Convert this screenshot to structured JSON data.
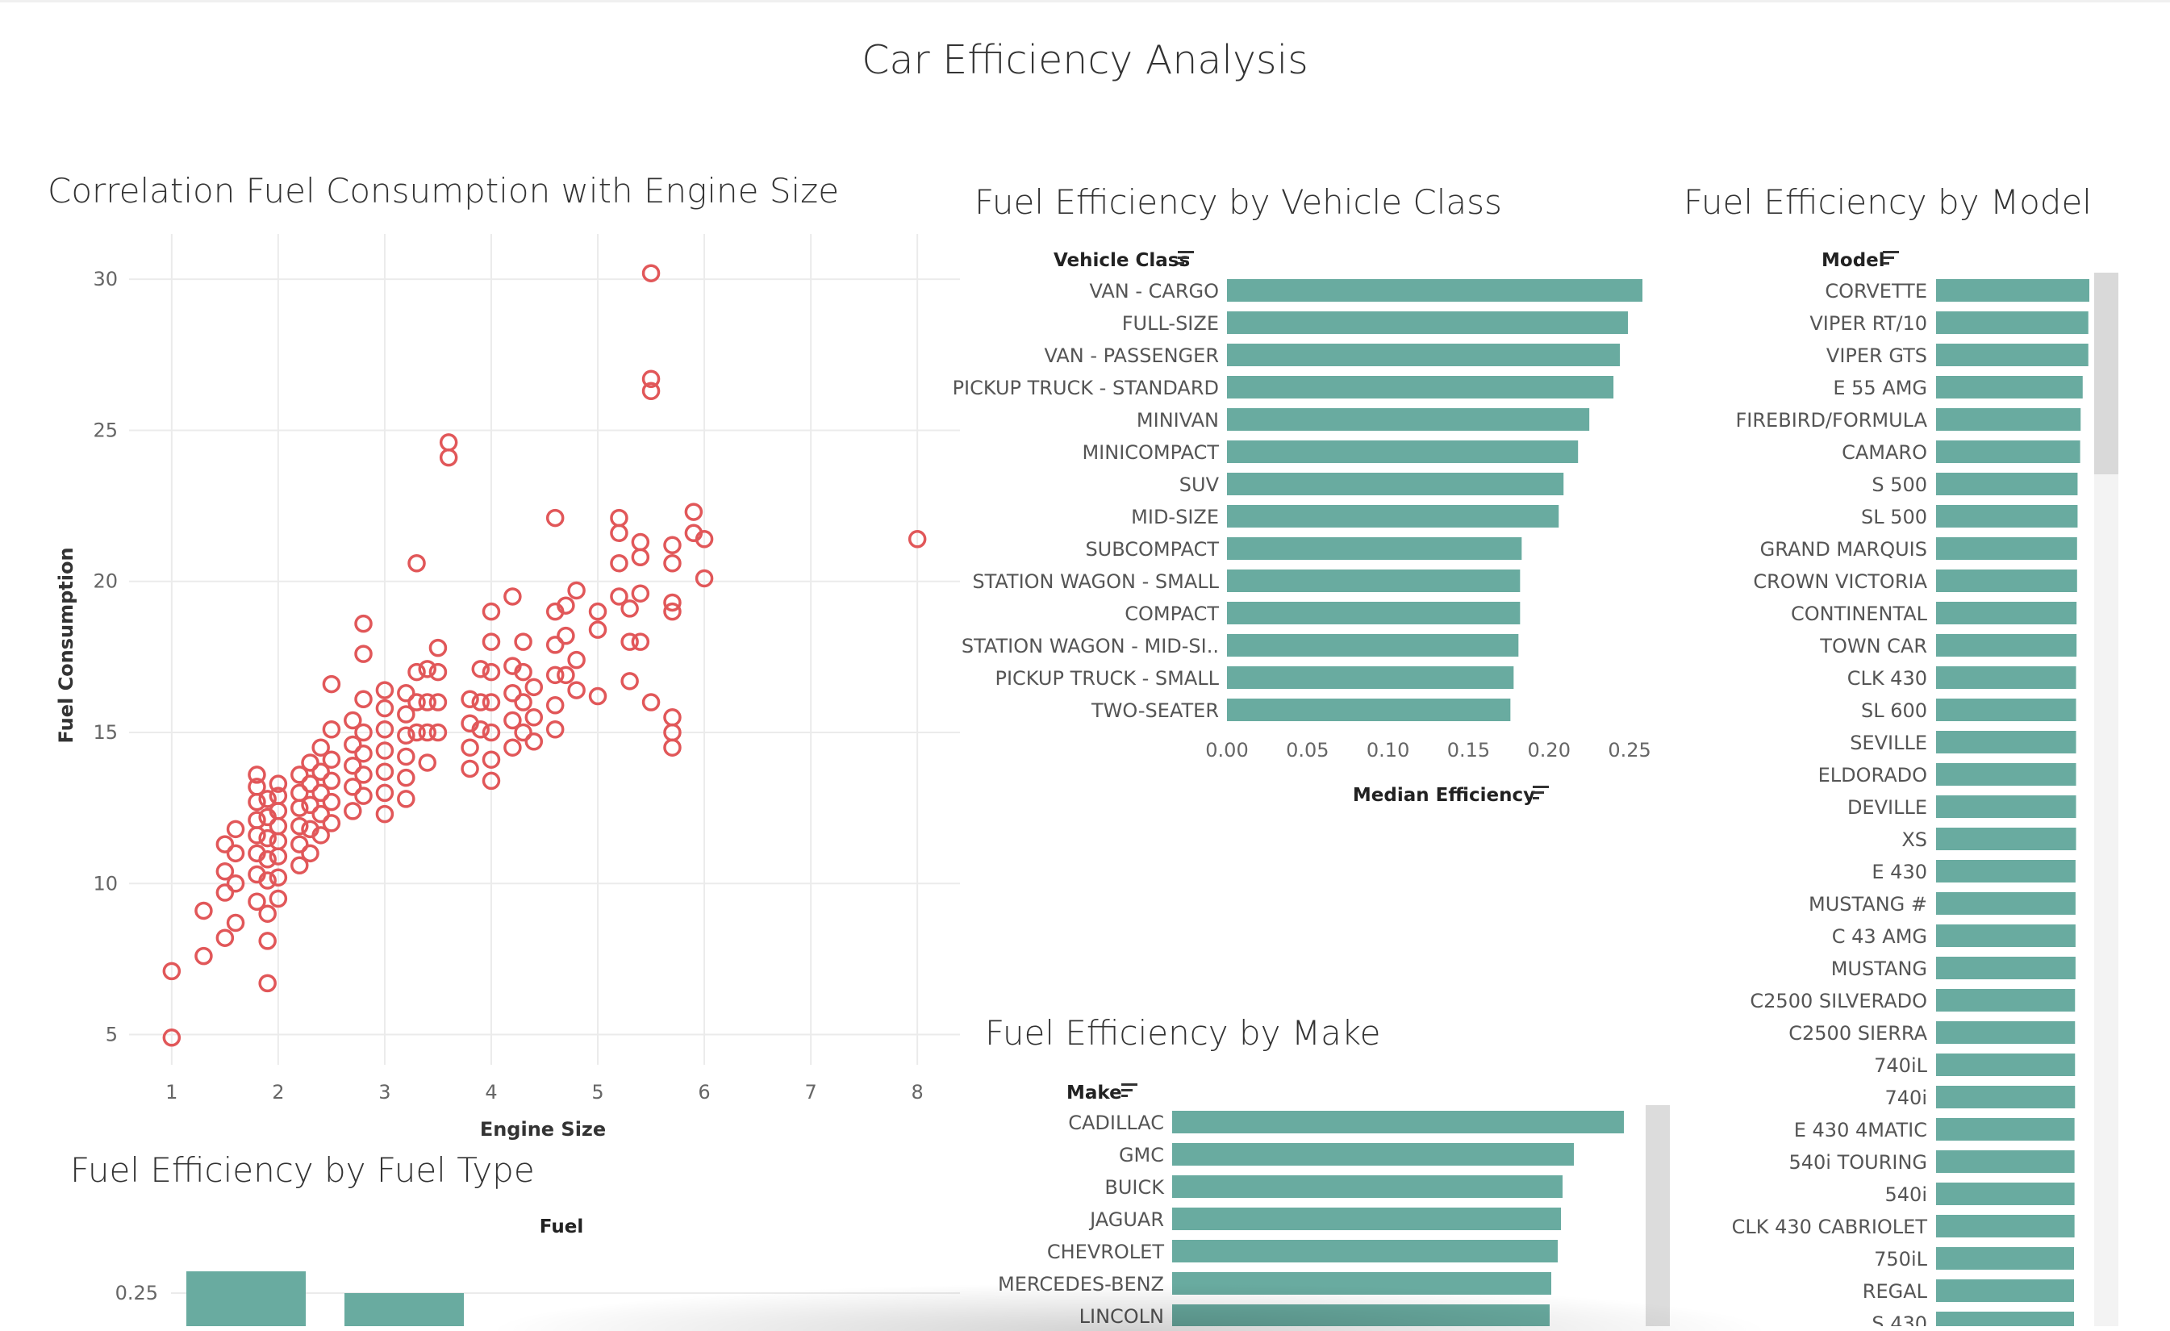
{
  "dashboard_title": "Car Efficiency Analysis",
  "colors": {
    "scatter": "#e15759",
    "bar": "#69aba0",
    "grid": "#ebebeb"
  },
  "scatter": {
    "title": "Correlation Fuel Consumption with Engine Size",
    "chart_data": {
      "type": "scatter",
      "xlabel": "Engine Size",
      "ylabel": "Fuel Consumption",
      "xlim": [
        0.6,
        8.4
      ],
      "ylim": [
        4,
        31.5
      ],
      "xticks": [
        "1",
        "2",
        "3",
        "4",
        "5",
        "6",
        "7",
        "8"
      ],
      "yticks": [
        "5",
        "10",
        "15",
        "20",
        "25",
        "30"
      ],
      "points": [
        [
          1.0,
          4.9
        ],
        [
          1.0,
          7.1
        ],
        [
          1.3,
          7.6
        ],
        [
          1.3,
          9.1
        ],
        [
          1.5,
          8.2
        ],
        [
          1.5,
          9.7
        ],
        [
          1.5,
          10.4
        ],
        [
          1.5,
          11.3
        ],
        [
          1.6,
          8.7
        ],
        [
          1.6,
          10.0
        ],
        [
          1.6,
          11.0
        ],
        [
          1.6,
          11.8
        ],
        [
          1.8,
          9.4
        ],
        [
          1.8,
          10.3
        ],
        [
          1.8,
          11.0
        ],
        [
          1.8,
          11.6
        ],
        [
          1.8,
          12.1
        ],
        [
          1.8,
          12.7
        ],
        [
          1.8,
          13.2
        ],
        [
          1.8,
          13.6
        ],
        [
          1.9,
          6.7
        ],
        [
          1.9,
          8.1
        ],
        [
          1.9,
          9.0
        ],
        [
          1.9,
          10.1
        ],
        [
          1.9,
          10.8
        ],
        [
          1.9,
          11.5
        ],
        [
          1.9,
          12.2
        ],
        [
          1.9,
          12.8
        ],
        [
          2.0,
          9.5
        ],
        [
          2.0,
          10.2
        ],
        [
          2.0,
          10.9
        ],
        [
          2.0,
          11.4
        ],
        [
          2.0,
          11.9
        ],
        [
          2.0,
          12.4
        ],
        [
          2.0,
          12.9
        ],
        [
          2.0,
          13.3
        ],
        [
          2.2,
          10.6
        ],
        [
          2.2,
          11.3
        ],
        [
          2.2,
          11.9
        ],
        [
          2.2,
          12.5
        ],
        [
          2.2,
          13.0
        ],
        [
          2.2,
          13.6
        ],
        [
          2.3,
          11.0
        ],
        [
          2.3,
          11.8
        ],
        [
          2.3,
          12.6
        ],
        [
          2.3,
          13.3
        ],
        [
          2.3,
          14.0
        ],
        [
          2.4,
          11.6
        ],
        [
          2.4,
          12.3
        ],
        [
          2.4,
          13.0
        ],
        [
          2.4,
          13.7
        ],
        [
          2.4,
          14.5
        ],
        [
          2.5,
          12.0
        ],
        [
          2.5,
          12.7
        ],
        [
          2.5,
          13.4
        ],
        [
          2.5,
          14.1
        ],
        [
          2.5,
          15.1
        ],
        [
          2.5,
          16.6
        ],
        [
          2.7,
          12.4
        ],
        [
          2.7,
          13.2
        ],
        [
          2.7,
          13.9
        ],
        [
          2.7,
          14.6
        ],
        [
          2.7,
          15.4
        ],
        [
          2.8,
          12.9
        ],
        [
          2.8,
          13.6
        ],
        [
          2.8,
          14.3
        ],
        [
          2.8,
          15.0
        ],
        [
          2.8,
          16.1
        ],
        [
          2.8,
          17.6
        ],
        [
          2.8,
          18.6
        ],
        [
          3.0,
          12.3
        ],
        [
          3.0,
          13.0
        ],
        [
          3.0,
          13.7
        ],
        [
          3.0,
          14.4
        ],
        [
          3.0,
          15.1
        ],
        [
          3.0,
          15.8
        ],
        [
          3.0,
          16.4
        ],
        [
          3.2,
          12.8
        ],
        [
          3.2,
          13.5
        ],
        [
          3.2,
          14.2
        ],
        [
          3.2,
          14.9
        ],
        [
          3.2,
          15.6
        ],
        [
          3.2,
          16.3
        ],
        [
          3.3,
          15.0
        ],
        [
          3.3,
          16.0
        ],
        [
          3.3,
          17.0
        ],
        [
          3.3,
          20.6
        ],
        [
          3.4,
          14.0
        ],
        [
          3.4,
          15.0
        ],
        [
          3.4,
          16.0
        ],
        [
          3.4,
          17.1
        ],
        [
          3.5,
          15.0
        ],
        [
          3.5,
          16.0
        ],
        [
          3.5,
          17.0
        ],
        [
          3.5,
          17.8
        ],
        [
          3.6,
          24.1
        ],
        [
          3.6,
          24.6
        ],
        [
          3.8,
          13.8
        ],
        [
          3.8,
          14.5
        ],
        [
          3.8,
          15.3
        ],
        [
          3.8,
          16.1
        ],
        [
          3.9,
          15.1
        ],
        [
          3.9,
          16.0
        ],
        [
          3.9,
          17.1
        ],
        [
          4.0,
          13.4
        ],
        [
          4.0,
          14.1
        ],
        [
          4.0,
          15.0
        ],
        [
          4.0,
          16.0
        ],
        [
          4.0,
          17.0
        ],
        [
          4.0,
          18.0
        ],
        [
          4.0,
          19.0
        ],
        [
          4.2,
          14.5
        ],
        [
          4.2,
          15.4
        ],
        [
          4.2,
          16.3
        ],
        [
          4.2,
          17.2
        ],
        [
          4.2,
          19.5
        ],
        [
          4.3,
          15.0
        ],
        [
          4.3,
          16.0
        ],
        [
          4.3,
          17.0
        ],
        [
          4.3,
          18.0
        ],
        [
          4.4,
          14.7
        ],
        [
          4.4,
          15.5
        ],
        [
          4.4,
          16.5
        ],
        [
          4.6,
          15.1
        ],
        [
          4.6,
          15.9
        ],
        [
          4.6,
          16.9
        ],
        [
          4.6,
          17.9
        ],
        [
          4.6,
          19.0
        ],
        [
          4.6,
          22.1
        ],
        [
          4.7,
          16.9
        ],
        [
          4.7,
          18.2
        ],
        [
          4.7,
          19.2
        ],
        [
          4.8,
          16.4
        ],
        [
          4.8,
          17.4
        ],
        [
          4.8,
          19.7
        ],
        [
          5.0,
          16.2
        ],
        [
          5.0,
          18.4
        ],
        [
          5.0,
          19.0
        ],
        [
          5.2,
          19.5
        ],
        [
          5.2,
          20.6
        ],
        [
          5.2,
          21.6
        ],
        [
          5.2,
          22.1
        ],
        [
          5.3,
          16.7
        ],
        [
          5.3,
          18.0
        ],
        [
          5.3,
          19.1
        ],
        [
          5.4,
          18.0
        ],
        [
          5.4,
          19.6
        ],
        [
          5.4,
          20.8
        ],
        [
          5.4,
          21.3
        ],
        [
          5.5,
          16.0
        ],
        [
          5.5,
          26.3
        ],
        [
          5.5,
          26.7
        ],
        [
          5.5,
          30.2
        ],
        [
          5.7,
          14.5
        ],
        [
          5.7,
          15.0
        ],
        [
          5.7,
          15.5
        ],
        [
          5.7,
          19.0
        ],
        [
          5.7,
          19.3
        ],
        [
          5.7,
          20.6
        ],
        [
          5.7,
          21.2
        ],
        [
          5.9,
          21.6
        ],
        [
          5.9,
          22.3
        ],
        [
          6.0,
          20.1
        ],
        [
          6.0,
          21.4
        ],
        [
          8.0,
          21.4
        ]
      ]
    }
  },
  "vehicle_class": {
    "title": "Fuel Efficiency by Vehicle Class",
    "header": "Vehicle Class",
    "chart_data": {
      "type": "bar",
      "orientation": "horizontal",
      "categories": [
        "VAN - CARGO",
        "FULL-SIZE",
        "VAN - PASSENGER",
        "PICKUP TRUCK - STANDARD",
        "MINIVAN",
        "MINICOMPACT",
        "SUV",
        "MID-SIZE",
        "SUBCOMPACT",
        "STATION WAGON - SMALL",
        "COMPACT",
        "STATION WAGON - MID-SI..",
        "PICKUP TRUCK - SMALL",
        "TWO-SEATER"
      ],
      "values": [
        0.258,
        0.249,
        0.244,
        0.24,
        0.225,
        0.218,
        0.209,
        0.206,
        0.183,
        0.182,
        0.182,
        0.181,
        0.178,
        0.176
      ],
      "xlabel": "Median Efficiency",
      "xlim": [
        0,
        0.27
      ],
      "xticks": [
        "0.00",
        "0.05",
        "0.10",
        "0.15",
        "0.20",
        "0.25"
      ]
    }
  },
  "model": {
    "title": "Fuel Efficiency by Model",
    "header": "Model",
    "chart_data": {
      "type": "bar",
      "orientation": "horizontal",
      "categories": [
        "CORVETTE",
        "VIPER RT/10",
        "VIPER GTS",
        "E 55 AMG",
        "FIREBIRD/FORMULA",
        "CAMARO",
        "S 500",
        "SL 500",
        "GRAND MARQUIS",
        "CROWN VICTORIA",
        "CONTINENTAL",
        "TOWN CAR",
        "CLK 430",
        "SL 600",
        "SEVILLE",
        "ELDORADO",
        "DEVILLE",
        "XS",
        "E 430",
        "MUSTANG #",
        "C 43 AMG",
        "MUSTANG",
        "C2500 SILVERADO",
        "C2500 SIERRA",
        "740iL",
        "740i",
        "E 430 4MATIC",
        "540i TOURING",
        "540i",
        "CLK 430 CABRIOLET",
        "750iL",
        "REGAL",
        "S 430"
      ],
      "values": [
        0.3,
        0.298,
        0.298,
        0.287,
        0.283,
        0.282,
        0.277,
        0.277,
        0.276,
        0.276,
        0.275,
        0.275,
        0.274,
        0.274,
        0.274,
        0.274,
        0.274,
        0.274,
        0.273,
        0.273,
        0.273,
        0.273,
        0.272,
        0.272,
        0.272,
        0.272,
        0.271,
        0.271,
        0.271,
        0.271,
        0.27,
        0.27,
        0.27
      ],
      "xlim": [
        0,
        0.3
      ]
    }
  },
  "make": {
    "title": "Fuel Efficiency by Make",
    "header": "Make",
    "chart_data": {
      "type": "bar",
      "orientation": "horizontal",
      "categories": [
        "CADILLAC",
        "GMC",
        "BUICK",
        "JAGUAR",
        "CHEVROLET",
        "MERCEDES-BENZ",
        "LINCOLN"
      ],
      "values": [
        0.28,
        0.249,
        0.242,
        0.241,
        0.239,
        0.235,
        0.234
      ],
      "xlim": [
        0,
        0.28
      ]
    }
  },
  "fuel_type": {
    "title": "Fuel Efficiency by Fuel Type",
    "header": "Fuel",
    "chart_data": {
      "type": "bar",
      "orientation": "vertical",
      "series": [
        {
          "values": [
            0.27,
            0.25
          ]
        }
      ],
      "yticks": [
        "0.25"
      ]
    }
  }
}
